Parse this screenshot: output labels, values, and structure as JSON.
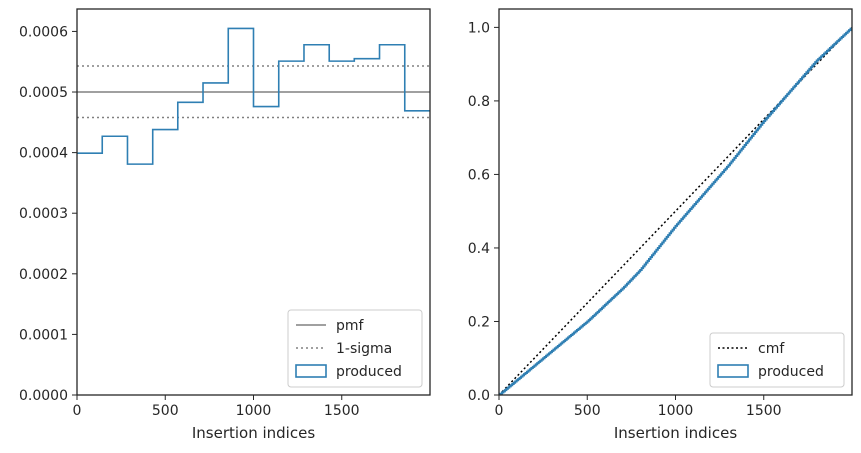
{
  "colors": {
    "produced": "#2f7fb3",
    "pmf_line": "#808080",
    "sigma_line": "#808080",
    "cmf_line": "#000000",
    "frame": "#262626",
    "legend_border": "#cccccc"
  },
  "chart_data": [
    {
      "type": "line",
      "subtype": "step-histogram",
      "xlabel": "Insertion indices",
      "ylabel": "",
      "xlim": [
        0,
        2000
      ],
      "ylim": [
        0,
        0.000637
      ],
      "xticks": [
        0,
        500,
        1000,
        1500
      ],
      "xtick_labels": [
        "0",
        "500",
        "1000",
        "1500"
      ],
      "yticks": [
        0,
        0.0001,
        0.0002,
        0.0003,
        0.0004,
        0.0005,
        0.0006
      ],
      "ytick_labels": [
        "0.0000",
        "0.0001",
        "0.0002",
        "0.0003",
        "0.0004",
        "0.0005",
        "0.0006"
      ],
      "grid": false,
      "legend_position": "lower right",
      "legend": [
        "pmf",
        "1-sigma",
        "produced"
      ],
      "series": [
        {
          "name": "pmf",
          "style": "solid",
          "value": 0.0005
        },
        {
          "name": "1-sigma",
          "style": "dotted",
          "values": [
            0.000458,
            0.000543
          ]
        },
        {
          "name": "produced",
          "style": "step",
          "bin_edges": [
            0,
            143,
            286,
            429,
            571,
            714,
            857,
            1000,
            1143,
            1286,
            1429,
            1571,
            1714,
            1857,
            2000
          ],
          "values": [
            0.000399,
            0.000427,
            0.000381,
            0.000438,
            0.000483,
            0.000515,
            0.000605,
            0.000476,
            0.000551,
            0.000578,
            0.000551,
            0.000555,
            0.000578,
            0.000469
          ]
        }
      ]
    },
    {
      "type": "line",
      "subtype": "cumulative",
      "xlabel": "Insertion indices",
      "ylabel": "",
      "xlim": [
        0,
        2000
      ],
      "ylim": [
        0,
        1.05
      ],
      "xticks": [
        0,
        500,
        1000,
        1500
      ],
      "xtick_labels": [
        "0",
        "500",
        "1000",
        "1500"
      ],
      "yticks": [
        0,
        0.2,
        0.4,
        0.6,
        0.8,
        1.0
      ],
      "ytick_labels": [
        "0.0",
        "0.2",
        "0.4",
        "0.6",
        "0.8",
        "1.0"
      ],
      "grid": false,
      "legend_position": "lower right",
      "legend": [
        "cmf",
        "produced"
      ],
      "series": [
        {
          "name": "cmf",
          "style": "dotted",
          "x": [
            0,
            2000
          ],
          "y": [
            0,
            1.0
          ]
        },
        {
          "name": "produced",
          "style": "step",
          "x": [
            0,
            100,
            200,
            300,
            400,
            500,
            600,
            700,
            800,
            900,
            1000,
            1100,
            1200,
            1300,
            1400,
            1500,
            1600,
            1700,
            1800,
            1900,
            2000
          ],
          "y": [
            0,
            0.04,
            0.08,
            0.12,
            0.16,
            0.2,
            0.245,
            0.29,
            0.34,
            0.4,
            0.46,
            0.515,
            0.57,
            0.625,
            0.685,
            0.745,
            0.8,
            0.855,
            0.91,
            0.955,
            1.0
          ]
        }
      ]
    }
  ]
}
